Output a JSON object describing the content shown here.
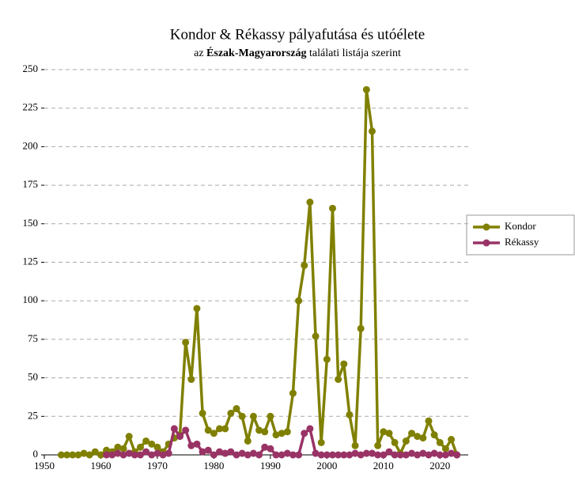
{
  "chart_data": {
    "type": "line",
    "title": "Kondor & Rékassy pályafutása és utóélete",
    "subtitle": [
      "az ",
      "Észak-Magyarország",
      " találati listája szerint"
    ],
    "xlim": [
      1950,
      2025
    ],
    "xticks": [
      1950,
      1960,
      1970,
      1980,
      1990,
      2000,
      2010,
      2020
    ],
    "ylim": [
      0,
      250
    ],
    "yticks": [
      0,
      25,
      50,
      75,
      100,
      125,
      150,
      175,
      200,
      225,
      250
    ],
    "grid": true,
    "legend": "right",
    "series": [
      {
        "name": "Kondor",
        "color": "#808000",
        "x": [
          1953,
          1954,
          1955,
          1956,
          1957,
          1958,
          1959,
          1960,
          1961,
          1962,
          1963,
          1964,
          1965,
          1966,
          1967,
          1968,
          1969,
          1970,
          1971,
          1972,
          1973,
          1974,
          1975,
          1976,
          1977,
          1978,
          1979,
          1980,
          1981,
          1982,
          1983,
          1984,
          1985,
          1986,
          1987,
          1988,
          1989,
          1990,
          1991,
          1992,
          1993,
          1994,
          1995,
          1996,
          1997,
          1998,
          1999,
          2000,
          2001,
          2002,
          2003,
          2004,
          2005,
          2006,
          2007,
          2008,
          2009,
          2010,
          2011,
          2012,
          2013,
          2014,
          2015,
          2016,
          2017,
          2018,
          2019,
          2020,
          2021,
          2022,
          2023
        ],
        "values": [
          0,
          0,
          0,
          0,
          1,
          0,
          2,
          0,
          3,
          2,
          5,
          4,
          12,
          2,
          5,
          9,
          7,
          5,
          2,
          7,
          11,
          13,
          73,
          49,
          95,
          27,
          16,
          14,
          17,
          17,
          27,
          30,
          25,
          9,
          25,
          16,
          15,
          25,
          13,
          14,
          15,
          40,
          100,
          123,
          164,
          77,
          8,
          62,
          160,
          49,
          59,
          26,
          6,
          82,
          237,
          210,
          6,
          15,
          14,
          8,
          1,
          9,
          14,
          12,
          11,
          22,
          13,
          8,
          4,
          10,
          0
        ]
      },
      {
        "name": "Rékassy",
        "color": "#993366",
        "x": [
          1961,
          1962,
          1963,
          1964,
          1965,
          1966,
          1967,
          1968,
          1969,
          1970,
          1971,
          1972,
          1973,
          1974,
          1975,
          1976,
          1977,
          1978,
          1979,
          1980,
          1981,
          1982,
          1983,
          1984,
          1985,
          1986,
          1987,
          1988,
          1989,
          1990,
          1991,
          1992,
          1993,
          1994,
          1995,
          1996,
          1997,
          1998,
          1999,
          2000,
          2001,
          2002,
          2003,
          2004,
          2005,
          2006,
          2007,
          2008,
          2009,
          2010,
          2011,
          2012,
          2013,
          2014,
          2015,
          2016,
          2017,
          2018,
          2019,
          2020,
          2021,
          2022,
          2023
        ],
        "values": [
          0,
          0,
          1,
          0,
          1,
          0,
          0,
          2,
          0,
          1,
          0,
          1,
          17,
          12,
          16,
          6,
          7,
          2,
          3,
          0,
          2,
          1,
          2,
          0,
          1,
          0,
          1,
          0,
          5,
          4,
          0,
          0,
          1,
          0,
          0,
          14,
          17,
          1,
          0,
          0,
          0,
          0,
          0,
          0,
          1,
          0,
          1,
          1,
          0,
          0,
          2,
          0,
          0,
          0,
          1,
          0,
          1,
          0,
          1,
          0,
          0,
          1,
          0
        ]
      }
    ]
  }
}
